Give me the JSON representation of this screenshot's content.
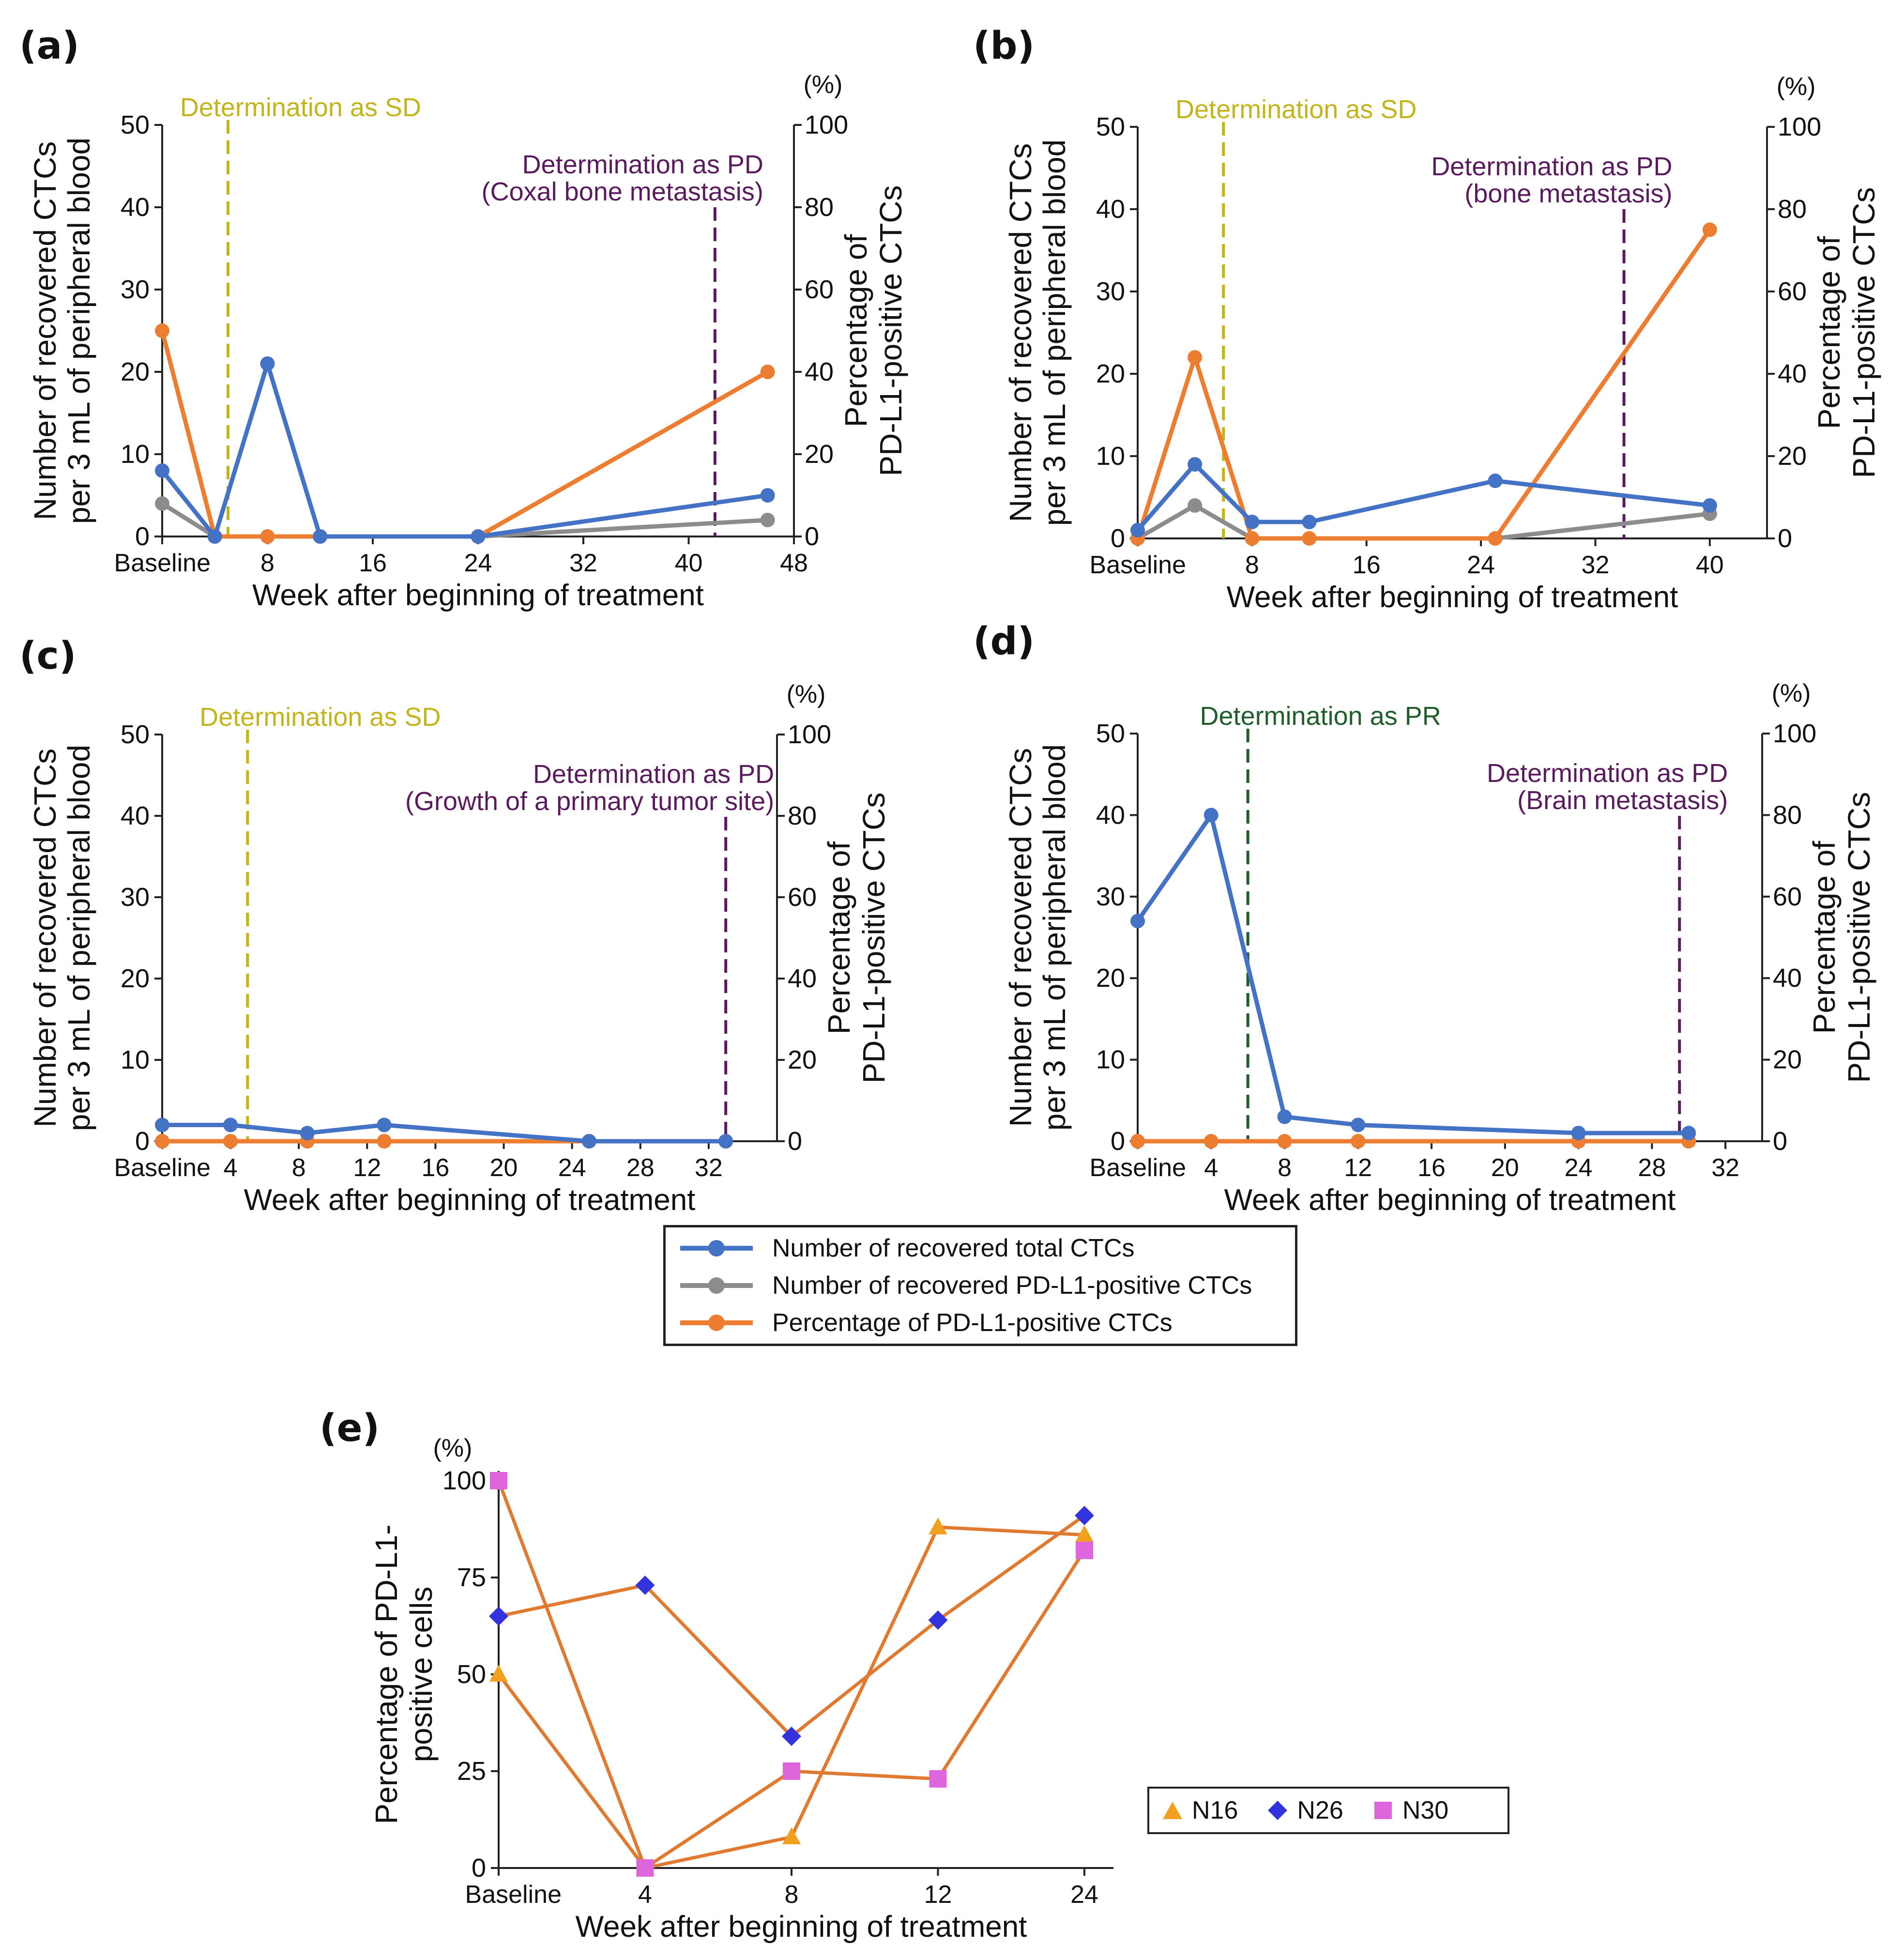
{
  "panels": {
    "a": {
      "label": "(a)"
    },
    "b": {
      "label": "(b)"
    },
    "c": {
      "label": "(c)"
    },
    "d": {
      "label": "(d)"
    },
    "e": {
      "label": "(e)"
    }
  },
  "legend": {
    "total": "Number of recovered total CTCs",
    "pdl1": "Number of recovered PD-L1-positive CTCs",
    "pct": "Percentage of PD-L1-positive CTCs"
  },
  "legend_e": {
    "n16": "N16",
    "n26": "N26",
    "n30": "N30"
  },
  "colors": {
    "total": "#4472c4",
    "pdl1": "#8c8c8c",
    "pct": "#ed7d31",
    "sd": "#c2b41a",
    "pr": "#1f5e2a",
    "pd": "#5a1a5e",
    "n16": "#f2a01f",
    "n26": "#3333dd",
    "n30": "#dd66dd",
    "e_line": "#e07a30"
  },
  "chart_data": [
    {
      "id": "a",
      "type": "line",
      "xlabel": "Week after beginning of treatment",
      "ylabel": [
        "Number of recovered CTCs",
        "per 3 mL of peripheral blood"
      ],
      "y2label": [
        "Percentage of",
        "PD-L1-positive CTCs"
      ],
      "y2unit": "(%)",
      "xlim": [
        0,
        48
      ],
      "xticks": [
        0,
        8,
        16,
        24,
        32,
        40,
        48
      ],
      "xticklabels": [
        "Baseline",
        "8",
        "16",
        "24",
        "32",
        "40",
        "48"
      ],
      "ylim": [
        0,
        50
      ],
      "yticks": [
        0,
        10,
        20,
        30,
        40,
        50
      ],
      "y2lim": [
        0,
        100
      ],
      "y2ticks": [
        0,
        20,
        40,
        60,
        80,
        100
      ],
      "series": [
        {
          "name": "Number of recovered total CTCs",
          "key": "total",
          "axis": "left",
          "x": [
            0,
            4,
            8,
            12,
            24,
            46
          ],
          "values": [
            8,
            0,
            21,
            0,
            0,
            5
          ]
        },
        {
          "name": "Number of recovered PD-L1-positive CTCs",
          "key": "pdl1",
          "axis": "left",
          "x": [
            0,
            4,
            8,
            12,
            24,
            46
          ],
          "values": [
            4,
            0,
            0,
            0,
            0,
            2
          ]
        },
        {
          "name": "Percentage of PD-L1-positive CTCs",
          "key": "pct",
          "axis": "right",
          "x": [
            0,
            4,
            8,
            12,
            24,
            46
          ],
          "values": [
            50,
            0,
            0,
            0,
            0,
            40
          ]
        }
      ],
      "vlines": [
        {
          "x": 5,
          "key": "sd",
          "lines": [
            "Determination as SD"
          ]
        },
        {
          "x": 42,
          "key": "pd",
          "lines": [
            "Determination as PD",
            "(Coxal bone metastasis)"
          ]
        }
      ]
    },
    {
      "id": "b",
      "type": "line",
      "xlabel": "Week after beginning of treatment",
      "ylabel": [
        "Number of recovered CTCs",
        "per 3 mL of peripheral blood"
      ],
      "y2label": [
        "Percentage of",
        "PD-L1-positive CTCs"
      ],
      "y2unit": "(%)",
      "xlim": [
        0,
        44
      ],
      "xticks": [
        0,
        8,
        16,
        24,
        32,
        40
      ],
      "xticklabels": [
        "Baseline",
        "8",
        "16",
        "24",
        "32",
        "40"
      ],
      "ylim": [
        0,
        50
      ],
      "yticks": [
        0,
        10,
        20,
        30,
        40,
        50
      ],
      "y2lim": [
        0,
        100
      ],
      "y2ticks": [
        0,
        20,
        40,
        60,
        80,
        100
      ],
      "series": [
        {
          "name": "Number of recovered total CTCs",
          "key": "total",
          "axis": "left",
          "x": [
            0,
            4,
            8,
            12,
            25,
            40
          ],
          "values": [
            1,
            9,
            2,
            2,
            7,
            4
          ]
        },
        {
          "name": "Number of recovered PD-L1-positive CTCs",
          "key": "pdl1",
          "axis": "left",
          "x": [
            0,
            4,
            8,
            12,
            25,
            40
          ],
          "values": [
            0,
            4,
            0,
            0,
            0,
            3
          ]
        },
        {
          "name": "Percentage of PD-L1-positive CTCs",
          "key": "pct",
          "axis": "right",
          "x": [
            0,
            4,
            8,
            12,
            25,
            40
          ],
          "values": [
            0,
            44,
            0,
            0,
            0,
            75
          ]
        }
      ],
      "vlines": [
        {
          "x": 6,
          "key": "sd",
          "lines": [
            "Determination as SD"
          ]
        },
        {
          "x": 34,
          "key": "pd",
          "lines": [
            "Determination as PD",
            "(bone metastasis)"
          ]
        }
      ]
    },
    {
      "id": "c",
      "type": "line",
      "xlabel": "Week after beginning of treatment",
      "ylabel": [
        "Number of recovered CTCs",
        "per 3 mL of peripheral blood"
      ],
      "y2label": [
        "Percentage of",
        "PD-L1-positive CTCs"
      ],
      "y2unit": "(%)",
      "xlim": [
        0,
        36
      ],
      "xticks": [
        0,
        4,
        8,
        12,
        16,
        20,
        24,
        28,
        32
      ],
      "xticklabels": [
        "Baseline",
        "4",
        "8",
        "12",
        "16",
        "20",
        "24",
        "28",
        "32"
      ],
      "ylim": [
        0,
        50
      ],
      "yticks": [
        0,
        10,
        20,
        30,
        40,
        50
      ],
      "y2lim": [
        0,
        100
      ],
      "y2ticks": [
        0,
        20,
        40,
        60,
        80,
        100
      ],
      "series": [
        {
          "name": "Number of recovered total CTCs",
          "key": "total",
          "axis": "left",
          "x": [
            0,
            4,
            8.5,
            13,
            25,
            33
          ],
          "values": [
            2,
            2,
            1,
            2,
            0,
            0
          ]
        },
        {
          "name": "Number of recovered PD-L1-positive CTCs",
          "key": "pdl1",
          "axis": "left",
          "x": [
            0,
            4,
            8.5,
            13,
            25,
            33
          ],
          "values": [
            0,
            0,
            0,
            0,
            0,
            0
          ]
        },
        {
          "name": "Percentage of PD-L1-positive CTCs",
          "key": "pct",
          "axis": "right",
          "x": [
            0,
            4,
            8.5,
            13,
            25,
            33
          ],
          "values": [
            0,
            0,
            0,
            0,
            0,
            0
          ]
        }
      ],
      "vlines": [
        {
          "x": 5,
          "key": "sd",
          "lines": [
            "Determination as SD"
          ]
        },
        {
          "x": 33,
          "key": "pd",
          "lines": [
            "Determination as PD",
            "(Growth of a primary tumor site)"
          ]
        }
      ]
    },
    {
      "id": "d",
      "type": "line",
      "xlabel": "Week after beginning of treatment",
      "ylabel": [
        "Number of recovered CTCs",
        "per 3 mL of peripheral blood"
      ],
      "y2label": [
        "Percentage of",
        "PD-L1-positive CTCs"
      ],
      "y2unit": "(%)",
      "xlim": [
        0,
        34
      ],
      "xticks": [
        0,
        4,
        8,
        12,
        16,
        20,
        24,
        28,
        32
      ],
      "xticklabels": [
        "Baseline",
        "4",
        "8",
        "12",
        "16",
        "20",
        "24",
        "28",
        "32"
      ],
      "ylim": [
        0,
        50
      ],
      "yticks": [
        0,
        10,
        20,
        30,
        40,
        50
      ],
      "y2lim": [
        0,
        100
      ],
      "y2ticks": [
        0,
        20,
        40,
        60,
        80,
        100
      ],
      "series": [
        {
          "name": "Number of recovered total CTCs",
          "key": "total",
          "axis": "left",
          "x": [
            0,
            4,
            8,
            12,
            24,
            30
          ],
          "values": [
            27,
            40,
            3,
            2,
            1,
            1
          ]
        },
        {
          "name": "Number of recovered PD-L1-positive CTCs",
          "key": "pdl1",
          "axis": "left",
          "x": [
            0,
            4,
            8,
            12,
            24,
            30
          ],
          "values": [
            0,
            0,
            0,
            0,
            0,
            0
          ]
        },
        {
          "name": "Percentage of PD-L1-positive CTCs",
          "key": "pct",
          "axis": "right",
          "x": [
            0,
            4,
            8,
            12,
            24,
            30
          ],
          "values": [
            0,
            0,
            0,
            0,
            0,
            0
          ]
        }
      ],
      "vlines": [
        {
          "x": 6,
          "key": "pr",
          "lines": [
            "Determination as PR"
          ]
        },
        {
          "x": 29.5,
          "key": "pd",
          "lines": [
            "Determination as PD",
            "(Brain metastasis)"
          ]
        }
      ]
    },
    {
      "id": "e",
      "type": "line",
      "xlabel": "Week after beginning of treatment",
      "ylabel": [
        "Percentage of PD-L1-",
        "positive cells"
      ],
      "yunit": "(%)",
      "categories": [
        "Baseline",
        "4",
        "8",
        "12",
        "24"
      ],
      "ylim": [
        0,
        100
      ],
      "yticks": [
        0,
        25,
        50,
        75,
        100
      ],
      "series": [
        {
          "name": "N16",
          "key": "n16",
          "marker": "triangle",
          "values": [
            50,
            0,
            8,
            88,
            86
          ]
        },
        {
          "name": "N26",
          "key": "n26",
          "marker": "diamond",
          "values": [
            65,
            73,
            34,
            64,
            91
          ]
        },
        {
          "name": "N30",
          "key": "n30",
          "marker": "square",
          "values": [
            100,
            0,
            25,
            23,
            82
          ]
        }
      ]
    }
  ]
}
